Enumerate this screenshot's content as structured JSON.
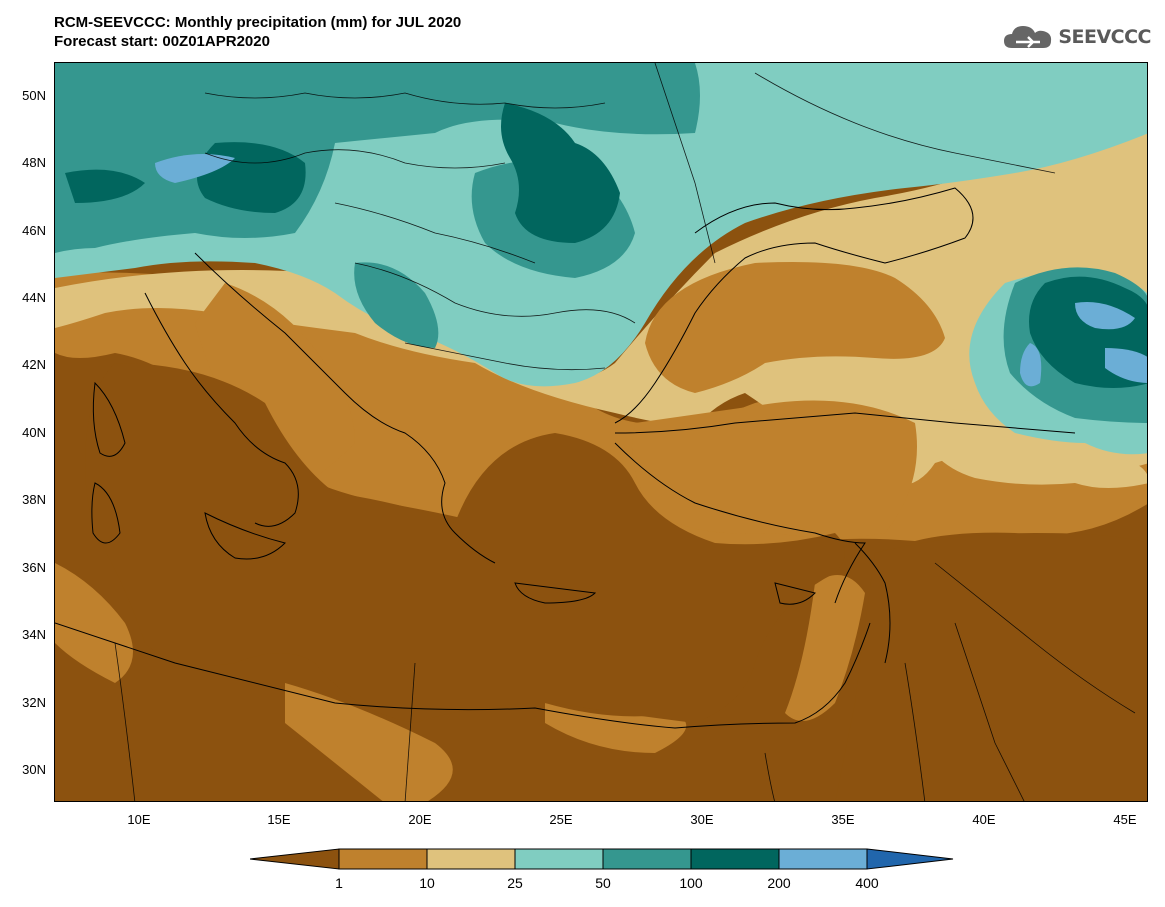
{
  "title": {
    "line1": "RCM-SEEVCCC: Monthly precipitation (mm) for JUL 2020",
    "line2": "Forecast start: 00Z01APR2020"
  },
  "logo": {
    "text": "SEEVCCC",
    "icon": "cloud-icon"
  },
  "axes": {
    "latitude_labels": [
      "50N",
      "48N",
      "46N",
      "44N",
      "42N",
      "40N",
      "38N",
      "36N",
      "34N",
      "32N",
      "30N"
    ],
    "longitude_labels": [
      "10E",
      "15E",
      "20E",
      "25E",
      "30E",
      "35E",
      "40E",
      "45E"
    ]
  },
  "legend": {
    "breaks": [
      "1",
      "10",
      "25",
      "50",
      "100",
      "200",
      "400"
    ],
    "colors": [
      "#8c520f",
      "#bf812d",
      "#dfc27d",
      "#80cdc1",
      "#35978f",
      "#01665e",
      "#6baed6",
      "#2166ac"
    ]
  }
}
